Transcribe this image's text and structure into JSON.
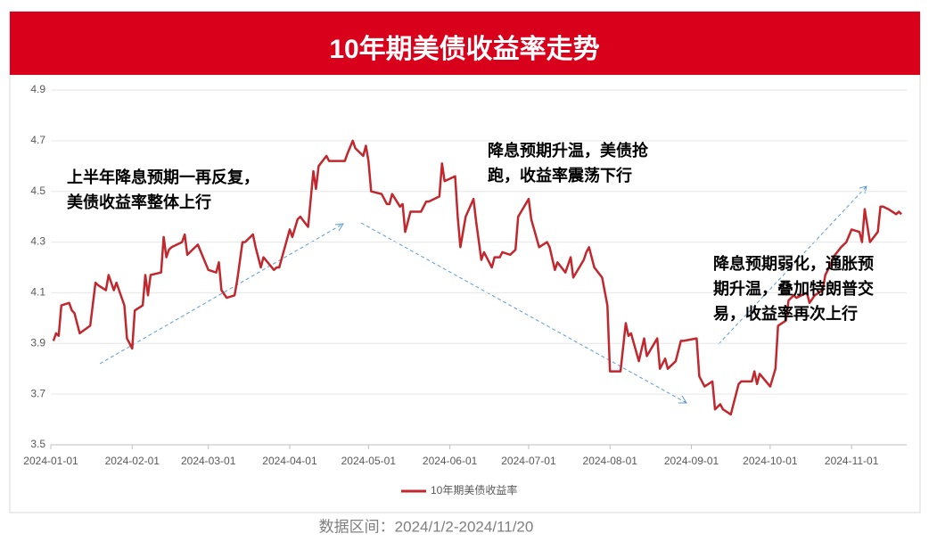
{
  "chart_data": {
    "type": "line",
    "title": "10年期美债收益率走势",
    "subtitle": "数据区间：2024/1/2-2024/11/20",
    "annotations": [
      {
        "lines": [
          "上半年降息预期一再反复，",
          "美债收益率整体上行"
        ]
      },
      {
        "lines": [
          "降息预期升温，美债抢",
          "跑，收益率震荡下行"
        ]
      },
      {
        "lines": [
          "降息预期弱化，通胀预",
          "期升温，叠加特朗普交",
          "易，收益率再次上行"
        ]
      }
    ],
    "xlim": [
      "2024-01-01",
      "2024-11-22"
    ],
    "xticks": [
      "2024-01-01",
      "2024-02-01",
      "2024-03-01",
      "2024-04-01",
      "2024-05-01",
      "2024-06-01",
      "2024-07-01",
      "2024-08-01",
      "2024-09-01",
      "2024-10-01",
      "2024-11-01"
    ],
    "ylim": [
      3.5,
      4.9
    ],
    "yticks": [
      3.5,
      3.7,
      3.9,
      4.1,
      4.3,
      4.5,
      4.7,
      4.9
    ],
    "grid": true,
    "legend": "bottom",
    "x": [
      "2024-01-02",
      "2024-01-03",
      "2024-01-04",
      "2024-01-05",
      "2024-01-08",
      "2024-01-09",
      "2024-01-10",
      "2024-01-12",
      "2024-01-16",
      "2024-01-18",
      "2024-01-19",
      "2024-01-22",
      "2024-01-23",
      "2024-01-25",
      "2024-01-26",
      "2024-01-29",
      "2024-01-30",
      "2024-02-01",
      "2024-02-02",
      "2024-02-05",
      "2024-02-06",
      "2024-02-07",
      "2024-02-08",
      "2024-02-12",
      "2024-02-13",
      "2024-02-14",
      "2024-02-15",
      "2024-02-16",
      "2024-02-20",
      "2024-02-21",
      "2024-02-22",
      "2024-02-23",
      "2024-02-26",
      "2024-02-28",
      "2024-03-01",
      "2024-03-04",
      "2024-03-05",
      "2024-03-06",
      "2024-03-08",
      "2024-03-11",
      "2024-03-12",
      "2024-03-14",
      "2024-03-15",
      "2024-03-18",
      "2024-03-19",
      "2024-03-21",
      "2024-03-22",
      "2024-03-26",
      "2024-03-27",
      "2024-03-28",
      "2024-04-01",
      "2024-04-02",
      "2024-04-04",
      "2024-04-05",
      "2024-04-08",
      "2024-04-10",
      "2024-04-11",
      "2024-04-12",
      "2024-04-15",
      "2024-04-16",
      "2024-04-18",
      "2024-04-22",
      "2024-04-23",
      "2024-04-25",
      "2024-04-26",
      "2024-04-29",
      "2024-04-30",
      "2024-05-01",
      "2024-05-02",
      "2024-05-06",
      "2024-05-07",
      "2024-05-08",
      "2024-05-09",
      "2024-05-10",
      "2024-05-13",
      "2024-05-14",
      "2024-05-15",
      "2024-05-16",
      "2024-05-17",
      "2024-05-21",
      "2024-05-23",
      "2024-05-24",
      "2024-05-28",
      "2024-05-29",
      "2024-05-30",
      "2024-06-03",
      "2024-06-04",
      "2024-06-05",
      "2024-06-07",
      "2024-06-10",
      "2024-06-11",
      "2024-06-13",
      "2024-06-14",
      "2024-06-17",
      "2024-06-18",
      "2024-06-20",
      "2024-06-21",
      "2024-06-24",
      "2024-06-26",
      "2024-06-27",
      "2024-07-01",
      "2024-07-02",
      "2024-07-05",
      "2024-07-08",
      "2024-07-09",
      "2024-07-11",
      "2024-07-12",
      "2024-07-15",
      "2024-07-17",
      "2024-07-18",
      "2024-07-22",
      "2024-07-23",
      "2024-07-24",
      "2024-07-26",
      "2024-07-29",
      "2024-07-31",
      "2024-08-01",
      "2024-08-05",
      "2024-08-07",
      "2024-08-08",
      "2024-08-09",
      "2024-08-12",
      "2024-08-14",
      "2024-08-15",
      "2024-08-19",
      "2024-08-20",
      "2024-08-22",
      "2024-08-23",
      "2024-08-26",
      "2024-08-28",
      "2024-08-29",
      "2024-09-03",
      "2024-09-04",
      "2024-09-06",
      "2024-09-09",
      "2024-09-10",
      "2024-09-12",
      "2024-09-13",
      "2024-09-16",
      "2024-09-18",
      "2024-09-19",
      "2024-09-20",
      "2024-09-24",
      "2024-09-25",
      "2024-09-26",
      "2024-09-27",
      "2024-10-01",
      "2024-10-03",
      "2024-10-04",
      "2024-10-07",
      "2024-10-08",
      "2024-10-10",
      "2024-10-11",
      "2024-10-15",
      "2024-10-16",
      "2024-10-18",
      "2024-10-21",
      "2024-10-22",
      "2024-10-24",
      "2024-10-25",
      "2024-10-28",
      "2024-10-30",
      "2024-11-01",
      "2024-11-04",
      "2024-11-05",
      "2024-11-06",
      "2024-11-08",
      "2024-11-11",
      "2024-11-12",
      "2024-11-13",
      "2024-11-15",
      "2024-11-18",
      "2024-11-19",
      "2024-11-20"
    ],
    "series": [
      {
        "name": "10年期美债收益率",
        "color": "#c1272d",
        "values": [
          3.91,
          3.94,
          3.93,
          4.05,
          4.06,
          4.03,
          4.02,
          3.94,
          3.97,
          4.14,
          4.13,
          4.11,
          4.17,
          4.11,
          4.14,
          4.05,
          3.92,
          3.88,
          4.03,
          4.05,
          4.17,
          4.09,
          4.17,
          4.18,
          4.32,
          4.24,
          4.27,
          4.28,
          4.3,
          4.33,
          4.25,
          4.26,
          4.29,
          4.24,
          4.19,
          4.18,
          4.22,
          4.11,
          4.08,
          4.09,
          4.15,
          4.3,
          4.3,
          4.33,
          4.28,
          4.2,
          4.24,
          4.19,
          4.2,
          4.2,
          4.35,
          4.32,
          4.39,
          4.4,
          4.36,
          4.58,
          4.51,
          4.6,
          4.64,
          4.62,
          4.62,
          4.62,
          4.65,
          4.7,
          4.67,
          4.64,
          4.68,
          4.62,
          4.5,
          4.49,
          4.47,
          4.45,
          4.45,
          4.49,
          4.44,
          4.45,
          4.34,
          4.38,
          4.42,
          4.42,
          4.46,
          4.46,
          4.48,
          4.61,
          4.54,
          4.56,
          4.4,
          4.28,
          4.4,
          4.47,
          4.38,
          4.23,
          4.26,
          4.2,
          4.24,
          4.24,
          4.26,
          4.25,
          4.27,
          4.4,
          4.47,
          4.39,
          4.28,
          4.3,
          4.28,
          4.19,
          4.22,
          4.18,
          4.24,
          4.16,
          4.23,
          4.26,
          4.28,
          4.2,
          4.16,
          4.05,
          3.79,
          3.79,
          3.98,
          3.93,
          3.94,
          3.83,
          3.92,
          3.85,
          3.92,
          3.8,
          3.84,
          3.8,
          3.83,
          3.91,
          3.91,
          3.92,
          3.77,
          3.73,
          3.75,
          3.64,
          3.66,
          3.64,
          3.62,
          3.7,
          3.74,
          3.75,
          3.75,
          3.79,
          3.74,
          3.78,
          3.73,
          3.8,
          3.97,
          3.99,
          4.07,
          4.09,
          4.08,
          4.1,
          4.06,
          4.09,
          4.11,
          4.17,
          4.21,
          4.24,
          4.28,
          4.3,
          4.35,
          4.34,
          4.3,
          4.43,
          4.3,
          4.34,
          4.44,
          4.44,
          4.43,
          4.41,
          4.42,
          4.41
        ]
      }
    ]
  }
}
